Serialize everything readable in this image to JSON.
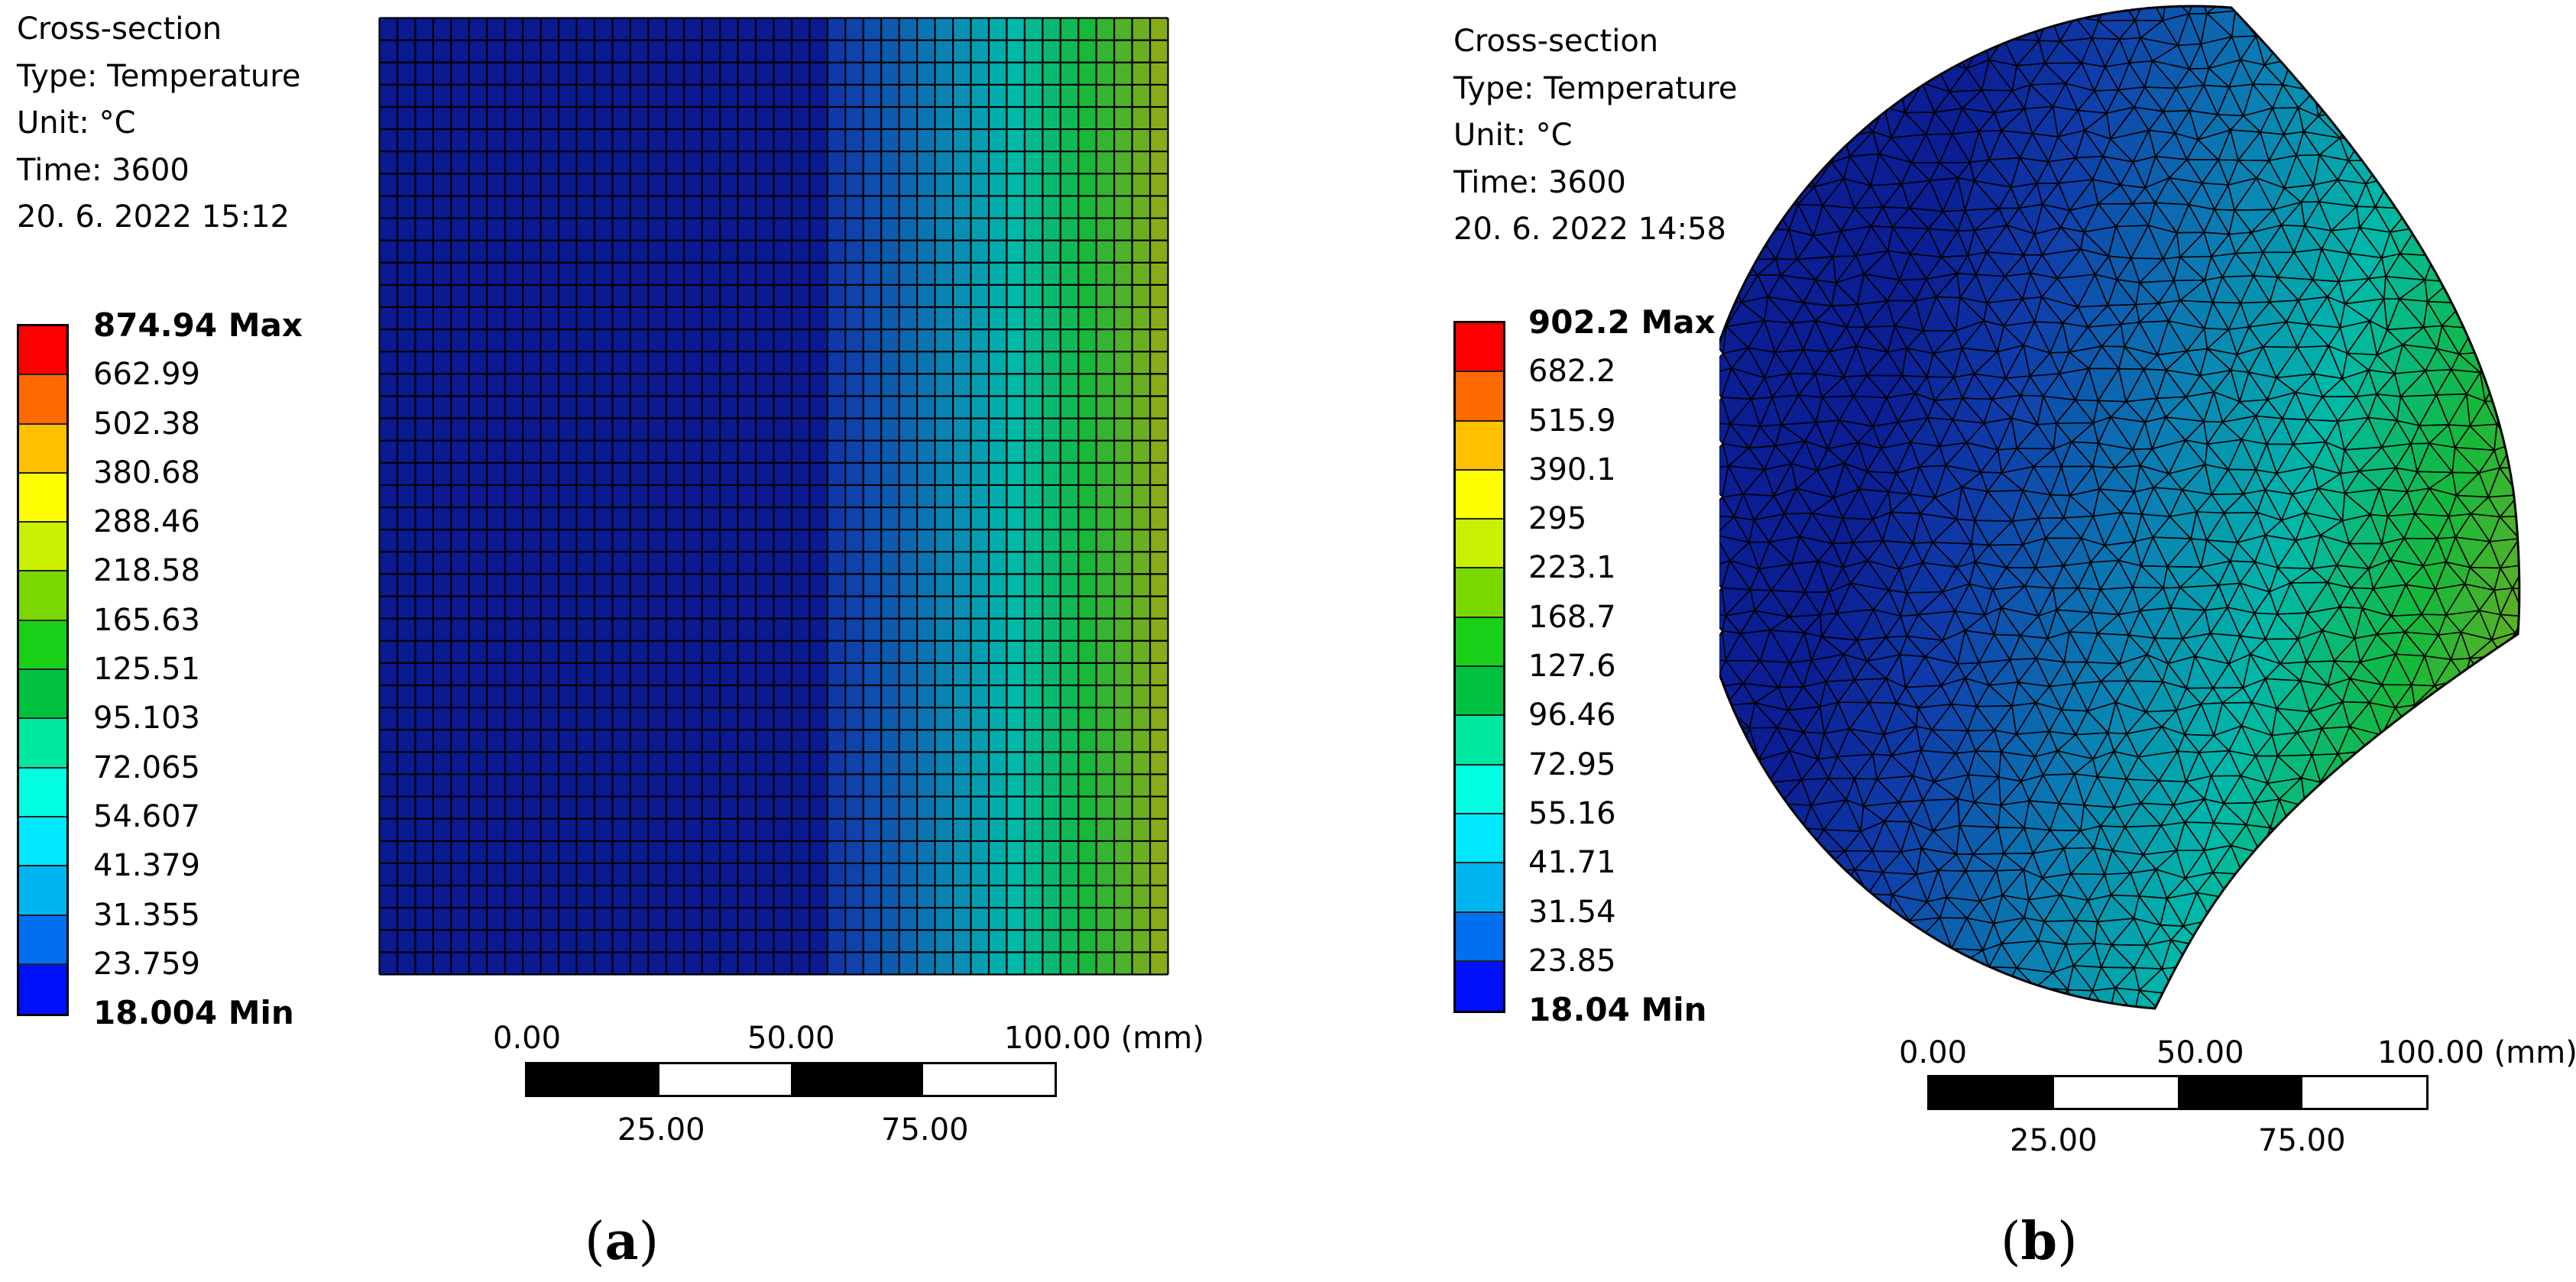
{
  "panels": [
    {
      "caption_open": "(",
      "caption_letter": "a",
      "caption_close": ")",
      "info": [
        "Cross-section",
        "Type: Temperature",
        "Unit: °C",
        "Time: 3600",
        "20. 6. 2022 15:12"
      ],
      "legend": {
        "max_label": "874.94 Max",
        "min_label": "18.004 Min",
        "levels": [
          "662.99",
          "502.38",
          "380.68",
          "288.46",
          "218.58",
          "165.63",
          "125.51",
          "95.103",
          "72.065",
          "54.607",
          "41.379",
          "31.355",
          "23.759"
        ]
      },
      "scale": {
        "top_labels": [
          "0.00",
          "50.00",
          "100.00 (mm)"
        ],
        "bottom_labels": [
          "25.00",
          "75.00"
        ]
      }
    },
    {
      "caption_open": "(",
      "caption_letter": "b",
      "caption_close": ")",
      "info": [
        "Cross-section",
        "Type: Temperature",
        "Unit: °C",
        "Time: 3600",
        "20. 6. 2022 14:58"
      ],
      "legend": {
        "max_label": "902.2 Max",
        "min_label": "18.04 Min",
        "levels": [
          "682.2",
          "515.9",
          "390.1",
          "295",
          "223.1",
          "168.7",
          "127.6",
          "96.46",
          "72.95",
          "55.16",
          "41.71",
          "31.54",
          "23.85"
        ]
      },
      "scale": {
        "top_labels": [
          "0.00",
          "50.00",
          "100.00 (mm)"
        ],
        "bottom_labels": [
          "25.00",
          "75.00"
        ]
      }
    }
  ],
  "colormap": [
    "#ff0000",
    "#ff6a00",
    "#ffc000",
    "#ffff00",
    "#c8f000",
    "#7ad800",
    "#18d018",
    "#00c040",
    "#00e8a0",
    "#00ffe0",
    "#00e8ff",
    "#00b4f0",
    "#0070f0",
    "#0010f8"
  ]
}
